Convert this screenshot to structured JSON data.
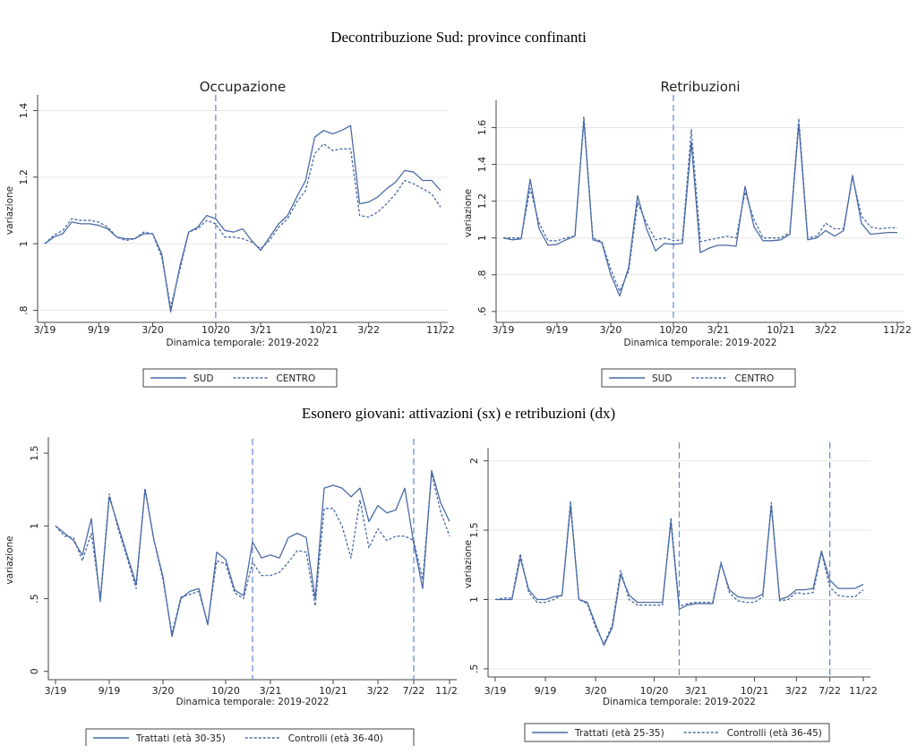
{
  "headings": {
    "top": "Decontribuzione Sud: province confinanti",
    "bottom": "Esonero giovani: attivazioni (sx) e retribuzioni (dx)"
  },
  "colors": {
    "line": "#4a6ba6",
    "vline": "#6f8fd0",
    "grid": "#e6e6e6"
  },
  "chart_data": [
    {
      "type": "line",
      "title": "Occupazione",
      "xlabel": "Dinamica temporale: 2019-2022",
      "ylabel": "variazione",
      "x_range": [
        0,
        44
      ],
      "x_ticks": [
        {
          "x": 0,
          "label": "3/19"
        },
        {
          "x": 6,
          "label": "9/19"
        },
        {
          "x": 12,
          "label": "3/20"
        },
        {
          "x": 19,
          "label": "10/20"
        },
        {
          "x": 24,
          "label": "3/21"
        },
        {
          "x": 31,
          "label": "10/21"
        },
        {
          "x": 36,
          "label": "3/22"
        },
        {
          "x": 44,
          "label": "11/22"
        }
      ],
      "ylim": [
        0.78,
        1.42
      ],
      "y_ticks": [
        {
          "v": 0.8,
          "label": ".8"
        },
        {
          "v": 1.0,
          "label": "1"
        },
        {
          "v": 1.2,
          "label": "1.2"
        },
        {
          "v": 1.4,
          "label": "1.4"
        }
      ],
      "vlines": [
        19
      ],
      "grid": true,
      "series": [
        {
          "name": "SUD",
          "style": "solid",
          "values": [
            1.0,
            1.02,
            1.03,
            1.065,
            1.06,
            1.06,
            1.055,
            1.045,
            1.02,
            1.015,
            1.015,
            1.03,
            1.03,
            0.97,
            0.795,
            0.93,
            1.035,
            1.05,
            1.085,
            1.075,
            1.04,
            1.035,
            1.045,
            1.01,
            0.98,
            1.02,
            1.06,
            1.085,
            1.14,
            1.19,
            1.32,
            1.34,
            1.33,
            1.34,
            1.355,
            1.12,
            1.125,
            1.14,
            1.165,
            1.185,
            1.22,
            1.215,
            1.19,
            1.19,
            1.16
          ]
        },
        {
          "name": "CENTRO",
          "style": "dash",
          "values": [
            1.0,
            1.025,
            1.04,
            1.075,
            1.07,
            1.07,
            1.065,
            1.05,
            1.02,
            1.01,
            1.015,
            1.035,
            1.03,
            0.96,
            0.81,
            0.92,
            1.035,
            1.045,
            1.07,
            1.06,
            1.02,
            1.02,
            1.015,
            1.005,
            0.985,
            1.01,
            1.05,
            1.075,
            1.125,
            1.16,
            1.27,
            1.3,
            1.28,
            1.285,
            1.285,
            1.085,
            1.08,
            1.095,
            1.12,
            1.15,
            1.19,
            1.18,
            1.165,
            1.15,
            1.11
          ]
        }
      ]
    },
    {
      "type": "line",
      "title": "Retribuzioni",
      "xlabel": "Dinamica temporale: 2019-2022",
      "ylabel": "variazione",
      "x_range": [
        0,
        44
      ],
      "x_ticks": [
        {
          "x": 0,
          "label": "3/19"
        },
        {
          "x": 6,
          "label": "9/19"
        },
        {
          "x": 12,
          "label": "3/20"
        },
        {
          "x": 19,
          "label": "10/20"
        },
        {
          "x": 24,
          "label": "3/21"
        },
        {
          "x": 31,
          "label": "10/21"
        },
        {
          "x": 36,
          "label": "3/22"
        },
        {
          "x": 44,
          "label": "11/22"
        }
      ],
      "ylim": [
        0.57,
        1.7
      ],
      "y_ticks": [
        {
          "v": 0.6,
          "label": ".6"
        },
        {
          "v": 0.8,
          "label": ".8"
        },
        {
          "v": 1.0,
          "label": "1"
        },
        {
          "v": 1.2,
          "label": "1.2"
        },
        {
          "v": 1.4,
          "label": "1.4"
        },
        {
          "v": 1.6,
          "label": "1.6"
        }
      ],
      "vlines": [
        19
      ],
      "grid": true,
      "series": [
        {
          "name": "SUD",
          "style": "solid",
          "values": [
            1.0,
            0.99,
            0.995,
            1.32,
            1.05,
            0.96,
            0.965,
            0.99,
            1.01,
            1.64,
            0.99,
            0.975,
            0.8,
            0.685,
            0.84,
            1.23,
            1.05,
            0.93,
            0.97,
            0.965,
            0.97,
            1.52,
            0.92,
            0.945,
            0.96,
            0.96,
            0.955,
            1.28,
            1.06,
            0.985,
            0.985,
            0.99,
            1.02,
            1.62,
            0.99,
            1.0,
            1.04,
            1.01,
            1.04,
            1.34,
            1.08,
            1.02,
            1.025,
            1.03,
            1.03
          ]
        },
        {
          "name": "CENTRO",
          "style": "dash",
          "values": [
            1.0,
            1.0,
            1.0,
            1.27,
            1.08,
            0.985,
            0.985,
            1.0,
            1.01,
            1.66,
            1.0,
            0.98,
            0.83,
            0.71,
            0.82,
            1.19,
            1.08,
            0.99,
            1.0,
            0.985,
            0.99,
            1.59,
            0.98,
            0.99,
            1.0,
            1.01,
            1.0,
            1.25,
            1.1,
            1.0,
            1.0,
            1.0,
            1.03,
            1.65,
            1.0,
            1.01,
            1.08,
            1.05,
            1.05,
            1.33,
            1.12,
            1.06,
            1.05,
            1.055,
            1.055
          ]
        }
      ]
    },
    {
      "type": "line",
      "title": "",
      "xlabel": "Dinamica temporale: 2019-2022",
      "ylabel": "variazione",
      "x_range": [
        0,
        44
      ],
      "x_ticks": [
        {
          "x": 0,
          "label": "3/19"
        },
        {
          "x": 6,
          "label": "9/19"
        },
        {
          "x": 12,
          "label": "3/20"
        },
        {
          "x": 19,
          "label": "10/20"
        },
        {
          "x": 24,
          "label": "3/21"
        },
        {
          "x": 31,
          "label": "10/21"
        },
        {
          "x": 36,
          "label": "3/22"
        },
        {
          "x": 40,
          "label": "7/22"
        },
        {
          "x": 44,
          "label": "11/22"
        }
      ],
      "ylim": [
        -0.02,
        1.55
      ],
      "y_ticks": [
        {
          "v": 0,
          "label": "0"
        },
        {
          "v": 0.5,
          "label": ".5"
        },
        {
          "v": 1.0,
          "label": "1"
        },
        {
          "v": 1.5,
          "label": "1.5"
        }
      ],
      "vlines": [
        22,
        40
      ],
      "grid": false,
      "series": [
        {
          "name": "Trattati (età 30-35)",
          "style": "solid",
          "values": [
            1.0,
            0.95,
            0.9,
            0.8,
            1.05,
            0.48,
            1.2,
            1.0,
            0.8,
            0.6,
            1.25,
            0.9,
            0.65,
            0.24,
            0.5,
            0.55,
            0.57,
            0.32,
            0.82,
            0.77,
            0.56,
            0.52,
            0.89,
            0.78,
            0.8,
            0.78,
            0.92,
            0.95,
            0.92,
            0.5,
            1.26,
            1.28,
            1.26,
            1.2,
            1.26,
            1.03,
            1.14,
            1.09,
            1.11,
            1.26,
            0.88,
            0.57,
            1.38,
            1.16,
            1.03
          ]
        },
        {
          "name": "Controlli (età 36-40)",
          "style": "dash",
          "values": [
            1.0,
            0.93,
            0.92,
            0.76,
            0.95,
            0.5,
            1.22,
            0.98,
            0.78,
            0.57,
            1.26,
            0.9,
            0.63,
            0.26,
            0.51,
            0.53,
            0.55,
            0.33,
            0.76,
            0.74,
            0.54,
            0.5,
            0.75,
            0.66,
            0.66,
            0.68,
            0.75,
            0.83,
            0.82,
            0.45,
            1.12,
            1.12,
            1.0,
            0.78,
            1.18,
            0.85,
            0.98,
            0.9,
            0.93,
            0.93,
            0.9,
            0.63,
            1.36,
            1.1,
            0.93
          ]
        }
      ]
    },
    {
      "type": "line",
      "title": "",
      "xlabel": "Dinamica temporale: 2019-2022",
      "ylabel": "variazione",
      "x_range": [
        0,
        44
      ],
      "x_ticks": [
        {
          "x": 0,
          "label": "3/19"
        },
        {
          "x": 6,
          "label": "9/19"
        },
        {
          "x": 12,
          "label": "3/20"
        },
        {
          "x": 19,
          "label": "10/20"
        },
        {
          "x": 24,
          "label": "3/21"
        },
        {
          "x": 31,
          "label": "10/21"
        },
        {
          "x": 36,
          "label": "3/22"
        },
        {
          "x": 40,
          "label": "7/22"
        },
        {
          "x": 44,
          "label": "11/22"
        }
      ],
      "ylim": [
        0.48,
        2.03
      ],
      "y_ticks": [
        {
          "v": 0.5,
          "label": ".5"
        },
        {
          "v": 1.0,
          "label": "1"
        },
        {
          "v": 1.5,
          "label": "1.5"
        },
        {
          "v": 2.0,
          "label": "2"
        }
      ],
      "vlines": [
        22,
        40
      ],
      "grid": true,
      "series": [
        {
          "name": "Trattati (età 25-35)",
          "style": "solid",
          "values": [
            1.0,
            1.0,
            1.0,
            1.3,
            1.07,
            1.0,
            1.0,
            1.02,
            1.03,
            1.68,
            1.0,
            0.98,
            0.82,
            0.67,
            0.8,
            1.18,
            1.03,
            0.98,
            0.98,
            0.98,
            0.98,
            1.56,
            0.93,
            0.96,
            0.97,
            0.97,
            0.97,
            1.26,
            1.07,
            1.02,
            1.01,
            1.01,
            1.04,
            1.68,
            1.0,
            1.02,
            1.07,
            1.07,
            1.08,
            1.35,
            1.14,
            1.08,
            1.08,
            1.08,
            1.11
          ]
        },
        {
          "name": "Controlli (età 36-45)",
          "style": "dash",
          "values": [
            1.0,
            1.01,
            1.01,
            1.33,
            1.05,
            0.98,
            0.98,
            1.0,
            1.03,
            1.71,
            1.0,
            0.97,
            0.8,
            0.68,
            0.82,
            1.21,
            1.0,
            0.96,
            0.96,
            0.96,
            0.96,
            1.59,
            0.95,
            0.97,
            0.98,
            0.98,
            0.98,
            1.27,
            1.05,
            0.99,
            0.98,
            0.98,
            1.02,
            1.7,
            0.99,
            1.0,
            1.05,
            1.04,
            1.05,
            1.34,
            1.09,
            1.03,
            1.02,
            1.02,
            1.07
          ]
        }
      ]
    }
  ]
}
